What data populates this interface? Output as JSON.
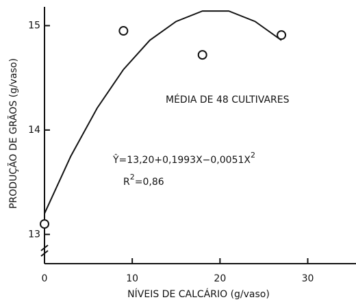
{
  "chart_data": {
    "type": "scatter",
    "x": [
      0,
      9,
      18,
      27
    ],
    "values": [
      13.1,
      14.95,
      14.72,
      14.91
    ],
    "fit": {
      "x": [
        0,
        3,
        6,
        9,
        12,
        15,
        18,
        21,
        24,
        27
      ],
      "values": [
        13.2,
        13.75,
        14.21,
        14.58,
        14.86,
        15.04,
        15.14,
        15.14,
        15.04,
        14.86
      ]
    },
    "xlim": [
      0,
      35.5
    ],
    "ylim": [
      12.72,
      15.18
    ],
    "xticks": [
      0,
      10,
      20,
      30
    ],
    "yticks": [
      13,
      14,
      15
    ],
    "xlabel": "NÍVEIS DE CALCÁRIO (g/vaso)",
    "ylabel": "PRODUÇÃO DE GRÃOS (g/vaso)",
    "annotations": {
      "subtitle": "MÉDIA DE 48 CULTIVARES",
      "equation": {
        "text": "Ŷ=13,20+0,1993X−0,0051X",
        "sup": "2"
      },
      "r2": {
        "text": "R",
        "sup": "2",
        "rest": "=0,86"
      }
    },
    "axis_break": true,
    "color": "#111111"
  }
}
